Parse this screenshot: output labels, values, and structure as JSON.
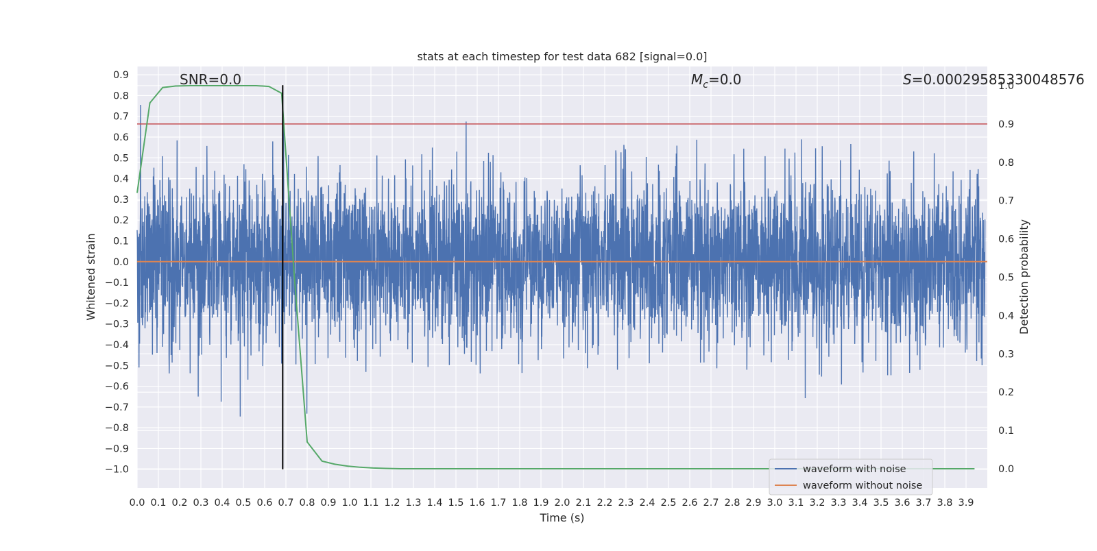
{
  "chart_data": {
    "type": "line",
    "title": "stats at each timestep for test data 682 [signal=0.0]",
    "xlabel": "Time (s)",
    "ylabel": "Whitened strain",
    "y2label": "Detection probability",
    "xlim": [
      0.0,
      4.0
    ],
    "ylim": [
      -1.09,
      0.94
    ],
    "y2lim": [
      -0.05,
      1.05
    ],
    "x_ticks": [
      0.0,
      0.1,
      0.2,
      0.3,
      0.4,
      0.5,
      0.6,
      0.7,
      0.8,
      0.9,
      1.0,
      1.1,
      1.2,
      1.3,
      1.4,
      1.5,
      1.6,
      1.7,
      1.8,
      1.9,
      2.0,
      2.1,
      2.2,
      2.3,
      2.4,
      2.5,
      2.6,
      2.7,
      2.8,
      2.9,
      3.0,
      3.1,
      3.2,
      3.3,
      3.4,
      3.5,
      3.6,
      3.7,
      3.8,
      3.9
    ],
    "y_ticks": [
      0.9,
      0.8,
      0.7,
      0.6,
      0.5,
      0.4,
      0.3,
      0.2,
      0.1,
      0.0,
      -0.1,
      -0.2,
      -0.3,
      -0.4,
      -0.5,
      -0.6,
      -0.7,
      -0.8,
      -0.9,
      -1.0
    ],
    "y2_ticks": [
      1.0,
      0.9,
      0.8,
      0.7,
      0.6,
      0.5,
      0.4,
      0.3,
      0.2,
      0.1,
      0.0
    ],
    "grid": true,
    "legend_position": "lower-right",
    "annotations": {
      "snr": "SNR=0.0",
      "mc_symbol": "M",
      "mc_sub": "c",
      "mc_value": "=0.0",
      "s_symbol": "S",
      "s_value": "=0.00029585330048576"
    },
    "series": [
      {
        "name": "waveform with noise",
        "color": "#4c72b0",
        "axis": "left",
        "kind": "noise",
        "sampling_hz": 2048,
        "approx_std": 0.2,
        "approx_range": [
          -0.97,
          0.85
        ]
      },
      {
        "name": "waveform without noise",
        "color": "#dd8452",
        "axis": "left",
        "x": [
          0.0,
          4.0
        ],
        "y": [
          0.0,
          0.0
        ]
      },
      {
        "color": "#55a868",
        "axis": "right",
        "x": [
          0.0,
          0.06,
          0.12,
          0.18,
          0.25,
          0.31,
          0.37,
          0.43,
          0.49,
          0.56,
          0.62,
          0.68,
          0.74,
          0.8,
          0.87,
          0.93,
          0.99,
          1.05,
          1.11,
          1.17,
          1.24,
          1.3,
          1.36,
          1.42,
          1.48,
          1.55,
          1.61,
          1.67,
          1.73,
          1.79,
          1.86,
          1.92,
          1.98,
          2.04,
          2.1,
          2.16,
          2.23,
          2.29,
          2.35,
          2.41,
          2.47,
          2.54,
          2.6,
          2.66,
          2.72,
          2.78,
          2.85,
          2.91,
          2.97,
          3.03,
          3.09,
          3.15,
          3.22,
          3.28,
          3.34,
          3.4,
          3.46,
          3.53,
          3.59,
          3.65,
          3.71,
          3.77,
          3.84,
          3.9,
          3.94
        ],
        "y": [
          0.72,
          0.955,
          0.995,
          0.999,
          1.0,
          1.0,
          1.0,
          1.0,
          1.0,
          1.0,
          0.998,
          0.98,
          0.5,
          0.07,
          0.02,
          0.012,
          0.007,
          0.004,
          0.002,
          0.001,
          0.0,
          0.0,
          0.0,
          0.0,
          0.0,
          0.0,
          0.0,
          0.0,
          0.0,
          0.0,
          0.0,
          0.0,
          0.0,
          0.0,
          0.0,
          0.0,
          0.0,
          0.0,
          0.0,
          0.0,
          0.0,
          0.0,
          0.0,
          0.0,
          0.0,
          0.0,
          0.0,
          0.0,
          0.0,
          0.0,
          0.0,
          0.0,
          0.0,
          0.0,
          0.0,
          0.0,
          0.0,
          0.0,
          0.0,
          0.0,
          0.0,
          0.0,
          0.0,
          0.0,
          0.0
        ]
      },
      {
        "color": "#c44e52",
        "axis": "right",
        "kind": "threshold",
        "y": 0.9
      },
      {
        "color": "#000000",
        "axis": "left",
        "kind": "vertical-marker",
        "x": 0.685,
        "y": [
          -1.0,
          0.85
        ]
      }
    ]
  }
}
